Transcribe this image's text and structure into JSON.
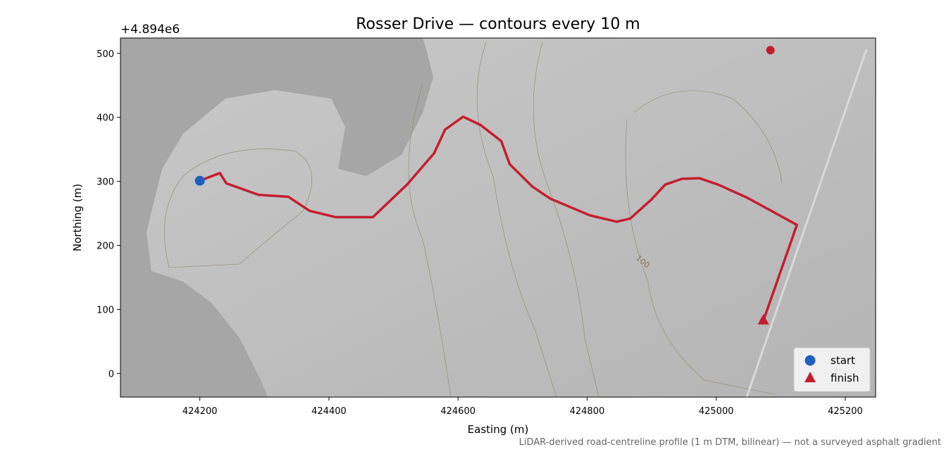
{
  "chart_data": {
    "type": "line",
    "title": "Rosser Drive — contours every 10 m",
    "x_label": "Easting (m)",
    "y_label": "Northing (m)",
    "y_offset_label": "+4.894e6",
    "footnote": "LiDAR-derived road-centreline profile (1 m DTM, bilinear) — not a surveyed asphalt gradient",
    "xlim": [
      424077,
      425247
    ],
    "ylim": [
      -37,
      524
    ],
    "xticks": [
      424200,
      424400,
      424600,
      424800,
      425000,
      425200
    ],
    "yticks": [
      0,
      100,
      200,
      300,
      400,
      500
    ],
    "legend": "lower right",
    "series": [
      {
        "color": "#c41e2e",
        "x": [
          424200,
          424231,
          424241,
          424291,
          424337,
          424370,
          424411,
          424468,
          424521,
          424563,
          424580,
          424608,
          424635,
          424667,
          424680,
          424715,
          424743,
          424804,
          424846,
          424867,
          424900,
          424921,
          424947,
          424974,
          425003,
          425047,
          425080,
          425125,
          425073
        ],
        "values": [
          301,
          313,
          297,
          279,
          276,
          254,
          244,
          244,
          295,
          344,
          381,
          401,
          388,
          363,
          327,
          292,
          273,
          247,
          237,
          242,
          272,
          295,
          304,
          305,
          295,
          275,
          257,
          232,
          82
        ]
      }
    ],
    "markers": [
      {
        "name": "start",
        "shape": "circle",
        "color": "#1f5fbf",
        "x": 424200,
        "y": 301
      },
      {
        "name": "finish",
        "shape": "triangle",
        "color": "#c41e2e",
        "x": 425073,
        "y": 83
      },
      {
        "shape": "circle",
        "color": "#c41e2e",
        "x": 425084,
        "y": 505
      }
    ],
    "annotations": [
      {
        "text": "100",
        "x": 424875,
        "y": 179,
        "color": "#8a7a5a"
      }
    ]
  }
}
